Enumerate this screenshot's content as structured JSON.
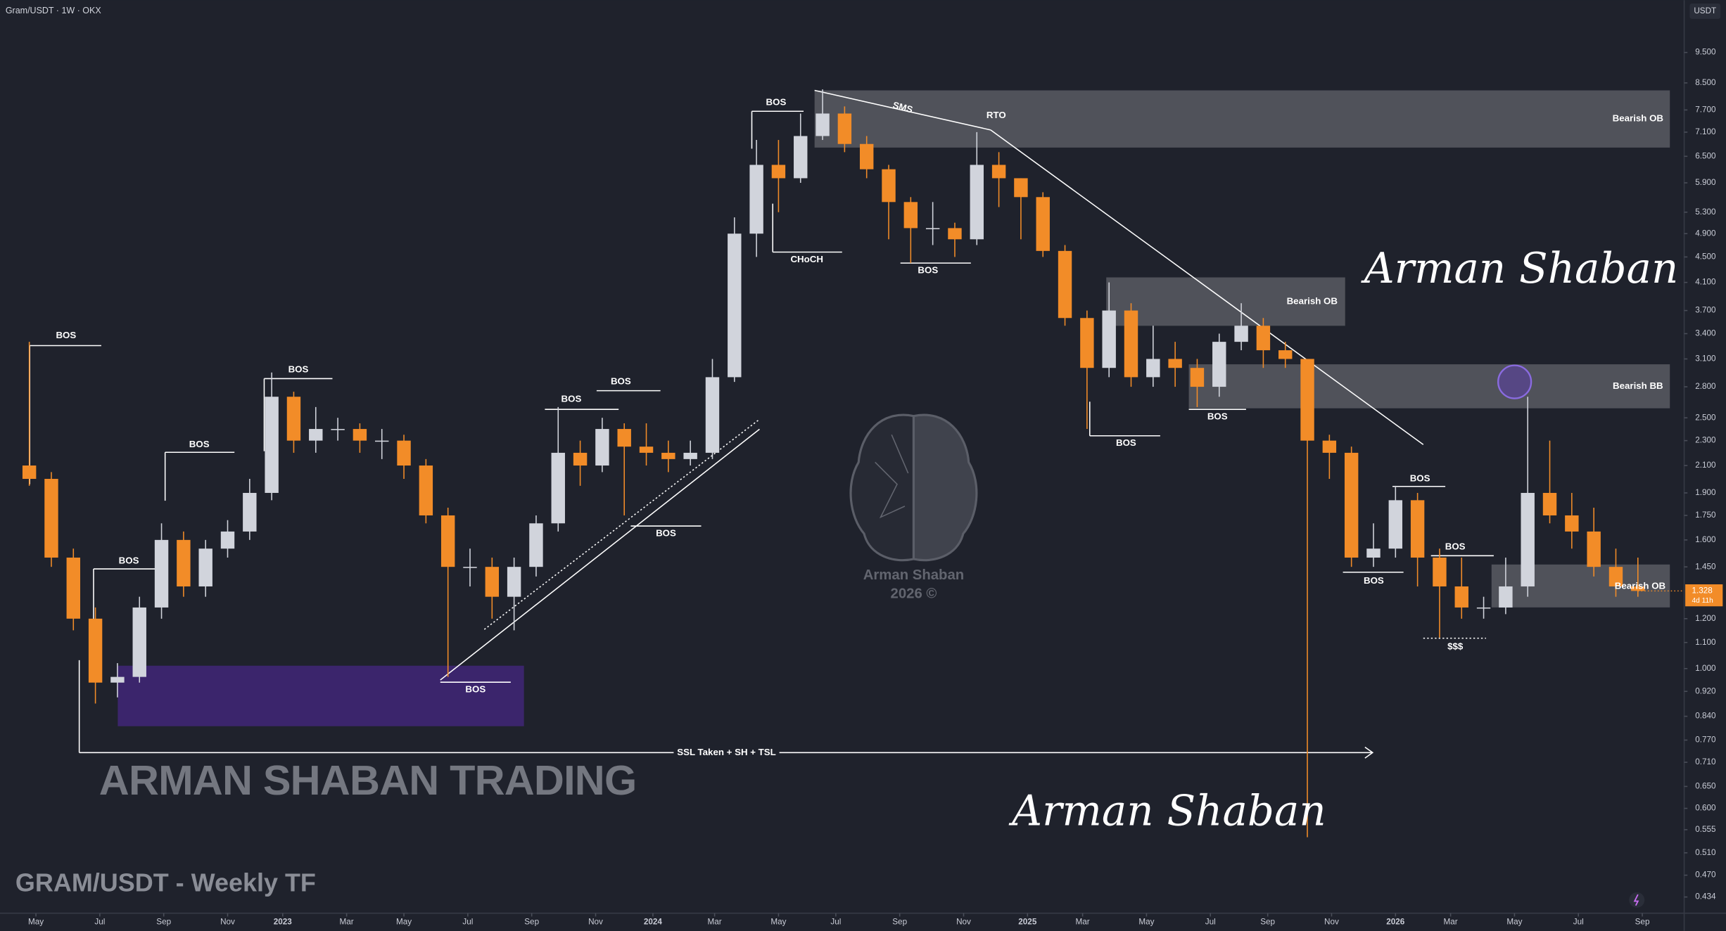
{
  "chart_data": {
    "type": "candlestick",
    "header": "Gram/USDT · 1W · OKX",
    "currency": "USDT",
    "title": "GRAM/USDT - Weekly TF",
    "watermark": "ARMAN SHABAN TRADING",
    "signature": "Arman Shaban",
    "logo_name": "Arman Shaban",
    "logo_year": "2026 ©",
    "log_scale": true,
    "grid": false,
    "up_color": "#d1d4dc",
    "down_color": "#f28c28",
    "open": [
      2.1,
      2.0,
      1.5,
      1.2,
      0.95,
      0.97,
      1.25,
      1.6,
      1.35,
      1.55,
      1.65,
      1.9,
      2.7,
      2.3,
      2.4,
      2.4,
      2.3,
      2.3,
      2.1,
      1.75,
      1.45,
      1.45,
      1.3,
      1.45,
      1.7,
      2.2,
      2.1,
      2.4,
      2.25,
      2.2,
      2.15,
      2.2,
      2.9,
      4.9,
      6.3,
      6.0,
      7.0,
      7.6,
      6.8,
      6.2,
      5.5,
      5.0,
      5.0,
      4.8,
      6.3,
      6.0,
      5.6,
      4.6,
      3.6,
      3.0,
      3.7,
      2.9,
      3.1,
      3.0,
      2.8,
      3.3,
      3.5,
      3.2,
      3.1,
      2.3,
      2.2,
      1.5,
      1.55,
      1.85,
      1.5,
      1.35,
      1.25,
      1.25,
      1.35,
      1.9,
      1.75,
      1.65,
      1.45,
      1.35
    ],
    "high": [
      3.3,
      2.05,
      1.55,
      1.25,
      1.02,
      1.3,
      1.7,
      1.65,
      1.6,
      1.72,
      2.0,
      2.95,
      2.75,
      2.6,
      2.5,
      2.45,
      2.4,
      2.35,
      2.15,
      1.8,
      1.55,
      1.5,
      1.5,
      1.75,
      2.6,
      2.3,
      2.5,
      2.45,
      2.45,
      2.3,
      2.3,
      3.1,
      5.2,
      6.9,
      6.9,
      7.6,
      8.3,
      7.8,
      7.0,
      6.3,
      5.6,
      5.5,
      5.1,
      7.1,
      6.6,
      6.0,
      5.7,
      4.7,
      3.7,
      4.1,
      3.8,
      3.5,
      3.3,
      3.1,
      3.4,
      3.8,
      3.6,
      3.3,
      3.1,
      2.35,
      2.25,
      1.7,
      1.95,
      1.9,
      1.55,
      1.5,
      1.3,
      1.5,
      2.7,
      2.3,
      1.9,
      1.8,
      1.55,
      1.5
    ],
    "low": [
      1.95,
      1.45,
      1.15,
      0.88,
      0.9,
      0.95,
      1.2,
      1.3,
      1.3,
      1.5,
      1.6,
      1.85,
      2.2,
      2.2,
      2.3,
      2.2,
      2.15,
      2.0,
      1.7,
      0.97,
      1.35,
      1.2,
      1.15,
      1.4,
      1.65,
      1.95,
      2.05,
      1.75,
      2.1,
      2.05,
      2.1,
      2.15,
      2.85,
      4.5,
      5.3,
      5.9,
      6.9,
      6.6,
      6.0,
      4.8,
      4.4,
      4.7,
      4.5,
      4.7,
      5.4,
      4.8,
      4.5,
      3.5,
      2.4,
      2.9,
      2.8,
      2.8,
      2.8,
      2.6,
      2.7,
      3.2,
      3.0,
      3.0,
      0.54,
      2.0,
      1.45,
      1.45,
      1.5,
      1.35,
      1.12,
      1.2,
      1.2,
      1.22,
      1.3,
      1.7,
      1.55,
      1.4,
      1.3,
      1.3
    ],
    "close": [
      2.0,
      1.5,
      1.2,
      0.95,
      0.97,
      1.25,
      1.6,
      1.35,
      1.55,
      1.65,
      1.9,
      2.7,
      2.3,
      2.4,
      2.4,
      2.3,
      2.3,
      2.1,
      1.75,
      1.45,
      1.45,
      1.3,
      1.45,
      1.7,
      2.2,
      2.1,
      2.4,
      2.25,
      2.2,
      2.15,
      2.2,
      2.9,
      4.9,
      6.3,
      6.0,
      7.0,
      7.6,
      6.8,
      6.2,
      5.5,
      5.0,
      5.0,
      4.8,
      6.3,
      6.0,
      5.6,
      4.6,
      3.6,
      3.0,
      3.7,
      2.9,
      3.1,
      3.0,
      2.8,
      3.3,
      3.5,
      3.2,
      3.1,
      2.3,
      2.2,
      1.5,
      1.55,
      1.85,
      1.5,
      1.35,
      1.25,
      1.25,
      1.35,
      1.9,
      1.75,
      1.65,
      1.45,
      1.35,
      1.328
    ],
    "last_price": 1.328,
    "countdown": "4d 11h",
    "xlim": [
      -1.33,
      75.1
    ],
    "xticks": [
      {
        "value": 0.3,
        "label": "May"
      },
      {
        "value": 3.2,
        "label": "Jul"
      },
      {
        "value": 6.1,
        "label": "Sep"
      },
      {
        "value": 9,
        "label": "Nov"
      },
      {
        "value": 11.5,
        "label": "2023"
      },
      {
        "value": 14.4,
        "label": "Mar"
      },
      {
        "value": 17,
        "label": "May"
      },
      {
        "value": 19.9,
        "label": "Jul"
      },
      {
        "value": 22.8,
        "label": "Sep"
      },
      {
        "value": 25.7,
        "label": "Nov"
      },
      {
        "value": 28.3,
        "label": "2024"
      },
      {
        "value": 31.1,
        "label": "Mar"
      },
      {
        "value": 34,
        "label": "May"
      },
      {
        "value": 36.6,
        "label": "Jul"
      },
      {
        "value": 39.5,
        "label": "Sep"
      },
      {
        "value": 42.4,
        "label": "Nov"
      },
      {
        "value": 45.3,
        "label": "2025"
      },
      {
        "value": 47.8,
        "label": "Mar"
      },
      {
        "value": 50.7,
        "label": "May"
      },
      {
        "value": 53.6,
        "label": "Jul"
      },
      {
        "value": 56.2,
        "label": "Sep"
      },
      {
        "value": 59.1,
        "label": "Nov"
      },
      {
        "value": 62,
        "label": "2026"
      },
      {
        "value": 64.5,
        "label": "Mar"
      },
      {
        "value": 67.4,
        "label": "May"
      },
      {
        "value": 70.3,
        "label": "Jul"
      },
      {
        "value": 73.2,
        "label": "Sep"
      }
    ],
    "ylim": [
      0.409,
      11.5
    ],
    "yticks": [
      {
        "value": 9.5,
        "label": "9.500"
      },
      {
        "value": 8.5,
        "label": "8.500"
      },
      {
        "value": 7.7,
        "label": "7.700"
      },
      {
        "value": 7.1,
        "label": "7.100"
      },
      {
        "value": 6.5,
        "label": "6.500"
      },
      {
        "value": 5.9,
        "label": "5.900"
      },
      {
        "value": 5.3,
        "label": "5.300"
      },
      {
        "value": 4.9,
        "label": "4.900"
      },
      {
        "value": 4.5,
        "label": "4.500"
      },
      {
        "value": 4.1,
        "label": "4.100"
      },
      {
        "value": 3.7,
        "label": "3.700"
      },
      {
        "value": 3.4,
        "label": "3.400"
      },
      {
        "value": 3.1,
        "label": "3.100"
      },
      {
        "value": 2.8,
        "label": "2.800"
      },
      {
        "value": 2.5,
        "label": "2.500"
      },
      {
        "value": 2.3,
        "label": "2.300"
      },
      {
        "value": 2.1,
        "label": "2.100"
      },
      {
        "value": 1.9,
        "label": "1.900"
      },
      {
        "value": 1.75,
        "label": "1.750"
      },
      {
        "value": 1.6,
        "label": "1.600"
      },
      {
        "value": 1.45,
        "label": "1.450"
      },
      {
        "value": 1.2,
        "label": "1.200"
      },
      {
        "value": 1.1,
        "label": "1.100"
      },
      {
        "value": 1,
        "label": "1.000"
      },
      {
        "value": 0.92,
        "label": "0.920"
      },
      {
        "value": 0.84,
        "label": "0.840"
      },
      {
        "value": 0.77,
        "label": "0.770"
      },
      {
        "value": 0.71,
        "label": "0.710"
      },
      {
        "value": 0.65,
        "label": "0.650"
      },
      {
        "value": 0.6,
        "label": "0.600"
      },
      {
        "value": 0.555,
        "label": "0.555"
      },
      {
        "value": 0.51,
        "label": "0.510"
      },
      {
        "value": 0.47,
        "label": "0.470"
      },
      {
        "value": 0.434,
        "label": "0.434"
      }
    ],
    "annotations": [
      "BOS",
      "BOS",
      "BOS",
      "BOS",
      "BOS",
      "BOS",
      "BOS",
      "BOS",
      "BOS",
      "CHoCH",
      "BOS",
      "SMS",
      "RTO",
      "Bearish OB",
      "Bearish OB",
      "BOS",
      "BOS",
      "Bearish BB",
      "BOS",
      "BOS",
      "BOS",
      "Bearish OB",
      "$$$",
      "SSL Taken + SH + TSL"
    ]
  }
}
